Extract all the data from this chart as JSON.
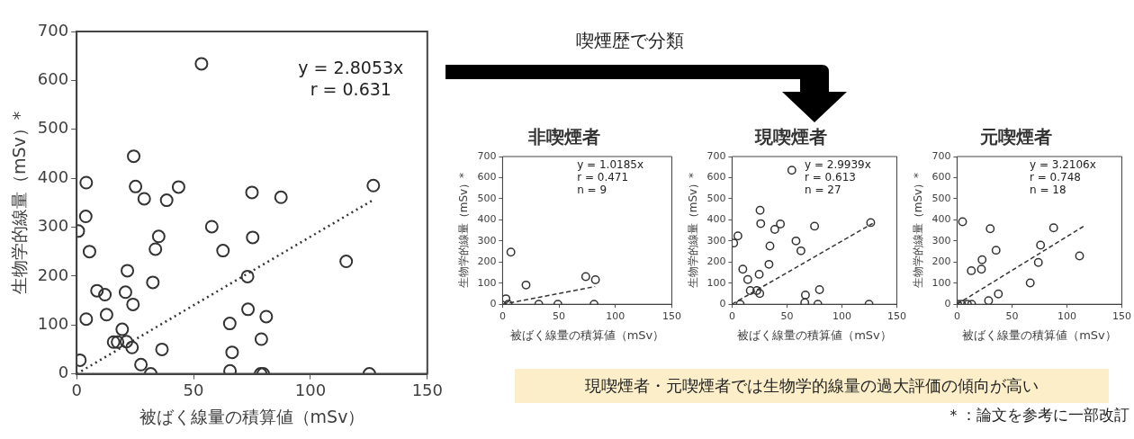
{
  "chart_data": [
    {
      "type": "scatter",
      "xlabel": "被ばく線量の積算値（mSv）",
      "ylabel": "生物学的線量（mSv）*",
      "xlim": [
        0,
        150
      ],
      "ylim": [
        0,
        700
      ],
      "xticks": [
        0,
        50,
        100,
        150
      ],
      "yticks": [
        0,
        100,
        200,
        300,
        400,
        500,
        600,
        700
      ],
      "annotations": [
        "y = 2.8053x",
        "r = 0.631"
      ],
      "series": [
        {
          "type": "scatter",
          "color": "#333333",
          "marker": "circle",
          "x": [
            53.4,
            24.4,
            4.1,
            25.2,
            43.6,
            126.9,
            75.0,
            87.4,
            28.9,
            38.5,
            3.9,
            0.7,
            57.8,
            35.1,
            75.3,
            5.5,
            33.7,
            62.6,
            115.3,
            21.7,
            73.1,
            32.6,
            8.7,
            12.1,
            20.9,
            24.1,
            12.8,
            73.3,
            81.1,
            4.1,
            65.5,
            19.5,
            15.8,
            17.5,
            21.3,
            23.7,
            79.0,
            36.5,
            66.5,
            1.4,
            27.5,
            31.7,
            65.6,
            78.7,
            79.8,
            125.2
          ],
          "values": [
            634,
            445,
            391,
            383,
            382,
            385,
            371,
            361,
            358,
            355,
            322,
            292,
            301,
            281,
            279,
            250,
            255,
            252,
            230,
            211,
            199,
            187,
            170,
            162,
            167,
            142,
            121,
            132,
            117,
            112,
            103,
            91,
            65,
            65,
            66,
            54,
            71,
            50,
            44,
            28,
            19,
            0,
            6,
            0,
            0,
            0
          ]
        },
        {
          "type": "line",
          "color": "#333333",
          "marker": "none",
          "line_style": "dotted",
          "x": [
            0,
            127
          ],
          "values": [
            0,
            356
          ]
        }
      ]
    },
    {
      "type": "scatter",
      "title": "非喫煙者",
      "xlabel": "被ばく線量の積算値（mSv）",
      "ylabel": "生物学的線量（mSv）*",
      "xlim": [
        0,
        150
      ],
      "ylim": [
        0,
        700
      ],
      "xticks": [
        0,
        50,
        100,
        150
      ],
      "yticks": [
        0,
        100,
        200,
        300,
        400,
        500,
        600,
        700
      ],
      "annotations": [
        "y = 1.0185x",
        "r = 0.471",
        "n = 9"
      ],
      "series": [
        {
          "type": "scatter",
          "color": "#333333",
          "marker": "circle",
          "x": [
            3.0,
            5.0,
            7.4,
            20.8,
            32.1,
            49.0,
            73.7,
            82.3,
            81.1
          ],
          "values": [
            26,
            0,
            247,
            91,
            0,
            0,
            131,
            116,
            0
          ]
        },
        {
          "type": "line",
          "color": "#333333",
          "marker": "none",
          "line_style": "dashed",
          "x": [
            0,
            82
          ],
          "values": [
            0,
            84
          ]
        }
      ]
    },
    {
      "type": "scatter",
      "title": "現喫煙者",
      "xlabel": "被ばく線量の積算値（mSv）",
      "ylabel": "生物学的線量（mSv）*",
      "xlim": [
        0,
        150
      ],
      "ylim": [
        0,
        700
      ],
      "xticks": [
        0,
        50,
        100,
        150
      ],
      "yticks": [
        0,
        100,
        200,
        300,
        400,
        500,
        600,
        700
      ],
      "annotations": [
        "y = 2.9939x",
        "r = 0.613",
        "n = 27"
      ],
      "series": [
        {
          "type": "scatter",
          "color": "#333333",
          "marker": "circle",
          "x": [
            54.4,
            1.5,
            5.3,
            25.5,
            26.1,
            44.0,
            38.9,
            75.1,
            126.2,
            58.2,
            62.7,
            34.5,
            33.6,
            9.8,
            14.3,
            24.7,
            16.6,
            22.6,
            25.2,
            79.6,
            66.8,
            66.2,
            7.4,
            78.1,
            124.7
          ],
          "values": [
            635,
            290,
            324,
            445,
            382,
            380,
            355,
            370,
            387,
            300,
            253,
            276,
            189,
            166,
            117,
            142,
            65,
            65,
            51,
            69,
            44,
            7,
            0,
            0,
            0
          ]
        },
        {
          "type": "line",
          "color": "#333333",
          "marker": "none",
          "line_style": "dashed",
          "x": [
            0,
            128
          ],
          "values": [
            0,
            383
          ]
        }
      ]
    },
    {
      "type": "scatter",
      "title": "元喫煙者",
      "xlabel": "被ばく線量の積算値（mSv）",
      "ylabel": "生物学的線量（mSv）*",
      "xlim": [
        0,
        150
      ],
      "ylim": [
        0,
        700
      ],
      "xticks": [
        0,
        50,
        100,
        150
      ],
      "yticks": [
        0,
        100,
        200,
        300,
        400,
        500,
        600,
        700
      ],
      "annotations": [
        "y = 3.2106x",
        "r = 0.748",
        "n = 18"
      ],
      "series": [
        {
          "type": "scatter",
          "color": "#333333",
          "marker": "circle",
          "x": [
            5.0,
            30.2,
            87.9,
            35.5,
            76.0,
            74.0,
            111.5,
            22.8,
            22.2,
            13.0,
            66.6,
            37.6,
            28.7,
            0.6,
            4.1,
            9.5,
            13.3
          ],
          "values": [
            391,
            358,
            362,
            256,
            280,
            198,
            229,
            211,
            166,
            159,
            101,
            49,
            17,
            0,
            0,
            0,
            0
          ]
        },
        {
          "type": "line",
          "color": "#333333",
          "marker": "none",
          "line_style": "dashed",
          "x": [
            0,
            116
          ],
          "values": [
            0,
            372
          ]
        }
      ]
    },
    {
      "type": "other",
      "annotations": [
        "喫煙歴で分類",
        "現喫煙者・元喫煙者では生物学的線量の過大評価の傾向が高い",
        "＊：論文を参考に一部改訂"
      ]
    }
  ]
}
